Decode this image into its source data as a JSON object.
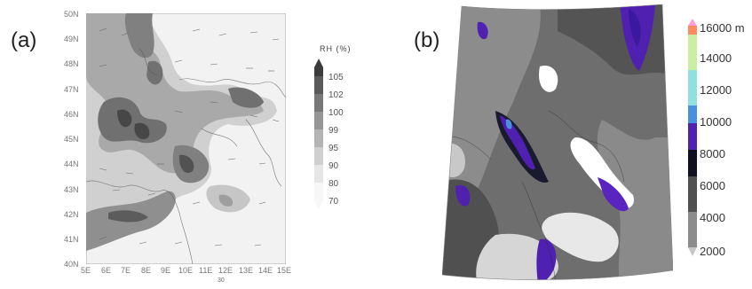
{
  "panels": {
    "a": {
      "label": "(a)",
      "lat_ticks": [
        "50N",
        "49N",
        "48N",
        "47N",
        "46N",
        "45N",
        "44N",
        "43N",
        "42N",
        "41N",
        "40N"
      ],
      "lon_ticks": [
        "5E",
        "6E",
        "7E",
        "8E",
        "9E",
        "10E",
        "11E",
        "12E",
        "13E",
        "14E",
        "15E"
      ],
      "colorbar": {
        "title": "RH (%)",
        "labels": [
          "105",
          "102",
          "100",
          "99",
          "95",
          "90",
          "80",
          "70"
        ],
        "colors": [
          "#3c3c3c",
          "#5a5a5a",
          "#787878",
          "#969696",
          "#b4b4b4",
          "#cfcfcf",
          "#e6e6e6",
          "#f7f7f7"
        ]
      },
      "vector_ref": "30"
    },
    "b": {
      "label": "(b)",
      "colorbar": {
        "labels": [
          "16000",
          "14000",
          "12000",
          "10000",
          "8000",
          "6000",
          "4000",
          "2000"
        ],
        "unit": "m",
        "colors": [
          "#ff9f80",
          "#c9f0a0",
          "#90e0e0",
          "#4a90e0",
          "#5020b0",
          "#101020",
          "#505050",
          "#8c8c8c",
          "#c8c8c8"
        ]
      }
    }
  }
}
